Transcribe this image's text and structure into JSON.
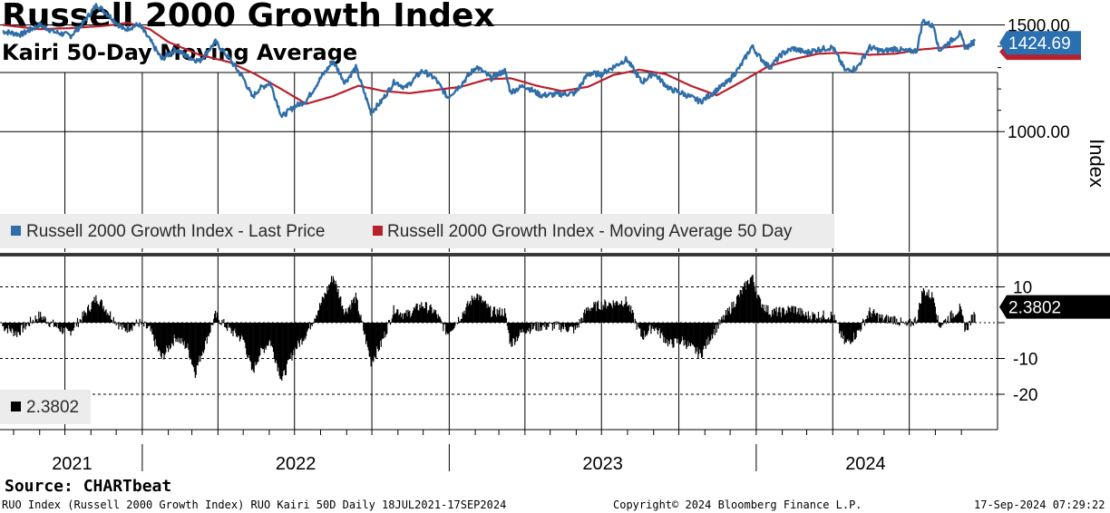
{
  "title": "Russell 2000 Growth Index",
  "subtitle": "Kairi 50-Day Moving Average",
  "source": "Source: CHARTbeat",
  "footer": {
    "left": "RUO Index (Russell 2000 Growth Index) RUO Kairi 50D  Daily 18JUL2021-17SEP2024",
    "center": "Copyright© 2024 Bloomberg Finance L.P.",
    "right": "17-Sep-2024 07:29:22"
  },
  "colors": {
    "price": "#2f6ea8",
    "ma": "#b8202c",
    "kairi": "#000000",
    "price_tag": "#2a6fb0",
    "kairi_tag": "#000000"
  },
  "chart_data": [
    {
      "type": "line",
      "ylabel": "Index",
      "ylim": [
        940,
        1560
      ],
      "yticks": [
        1000,
        1500
      ],
      "ytick_labels": [
        "1000.00",
        "1500.00"
      ],
      "x_range": [
        "2021-07-18",
        "2024-09-17"
      ],
      "year_labels": [
        "2021",
        "2022",
        "2023",
        "2024"
      ],
      "legend": {
        "position": "bottom-left"
      },
      "last_value_label": "1424.69",
      "series": [
        {
          "name": "Russell 2000 Growth Index - Last Price",
          "key": "price",
          "points": [
            [
              "2021-07-19",
              1470
            ],
            [
              "2021-08-10",
              1455
            ],
            [
              "2021-09-01",
              1500
            ],
            [
              "2021-09-20",
              1465
            ],
            [
              "2021-10-08",
              1450
            ],
            [
              "2021-10-20",
              1495
            ],
            [
              "2021-11-08",
              1595
            ],
            [
              "2021-11-25",
              1535
            ],
            [
              "2021-12-10",
              1478
            ],
            [
              "2021-12-28",
              1502
            ],
            [
              "2022-01-10",
              1430
            ],
            [
              "2022-01-24",
              1340
            ],
            [
              "2022-02-10",
              1385
            ],
            [
              "2022-02-24",
              1350
            ],
            [
              "2022-03-10",
              1330
            ],
            [
              "2022-03-29",
              1420
            ],
            [
              "2022-04-15",
              1340
            ],
            [
              "2022-05-02",
              1245
            ],
            [
              "2022-05-12",
              1160
            ],
            [
              "2022-05-20",
              1200
            ],
            [
              "2022-06-02",
              1230
            ],
            [
              "2022-06-16",
              1070
            ],
            [
              "2022-06-30",
              1115
            ],
            [
              "2022-07-15",
              1145
            ],
            [
              "2022-08-01",
              1250
            ],
            [
              "2022-08-16",
              1330
            ],
            [
              "2022-08-30",
              1230
            ],
            [
              "2022-09-12",
              1300
            ],
            [
              "2022-09-30",
              1090
            ],
            [
              "2022-10-12",
              1140
            ],
            [
              "2022-10-28",
              1235
            ],
            [
              "2022-11-10",
              1205
            ],
            [
              "2022-11-30",
              1285
            ],
            [
              "2022-12-15",
              1250
            ],
            [
              "2022-12-30",
              1160
            ],
            [
              "2023-01-15",
              1220
            ],
            [
              "2023-02-02",
              1305
            ],
            [
              "2023-02-20",
              1250
            ],
            [
              "2023-03-08",
              1285
            ],
            [
              "2023-03-15",
              1185
            ],
            [
              "2023-03-31",
              1215
            ],
            [
              "2023-04-20",
              1170
            ],
            [
              "2023-05-10",
              1175
            ],
            [
              "2023-05-31",
              1180
            ],
            [
              "2023-06-15",
              1270
            ],
            [
              "2023-07-01",
              1270
            ],
            [
              "2023-07-31",
              1340
            ],
            [
              "2023-08-18",
              1230
            ],
            [
              "2023-09-01",
              1275
            ],
            [
              "2023-09-20",
              1200
            ],
            [
              "2023-10-05",
              1180
            ],
            [
              "2023-10-27",
              1140
            ],
            [
              "2023-11-10",
              1180
            ],
            [
              "2023-11-29",
              1235
            ],
            [
              "2023-12-13",
              1305
            ],
            [
              "2023-12-27",
              1400
            ],
            [
              "2024-01-05",
              1350
            ],
            [
              "2024-01-17",
              1300
            ],
            [
              "2024-02-01",
              1365
            ],
            [
              "2024-02-14",
              1390
            ],
            [
              "2024-02-29",
              1370
            ],
            [
              "2024-03-15",
              1385
            ],
            [
              "2024-04-01",
              1395
            ],
            [
              "2024-04-16",
              1285
            ],
            [
              "2024-04-30",
              1300
            ],
            [
              "2024-05-15",
              1395
            ],
            [
              "2024-05-31",
              1375
            ],
            [
              "2024-06-14",
              1390
            ],
            [
              "2024-06-28",
              1375
            ],
            [
              "2024-07-10",
              1380
            ],
            [
              "2024-07-17",
              1520
            ],
            [
              "2024-07-31",
              1490
            ],
            [
              "2024-08-05",
              1380
            ],
            [
              "2024-08-15",
              1410
            ],
            [
              "2024-08-30",
              1460
            ],
            [
              "2024-09-06",
              1390
            ],
            [
              "2024-09-17",
              1424.69
            ]
          ]
        },
        {
          "name": "Russell 2000 Growth Index - Moving Average 50 Day",
          "key": "ma",
          "points": [
            [
              "2021-07-19",
              1500
            ],
            [
              "2021-09-01",
              1480
            ],
            [
              "2021-10-08",
              1485
            ],
            [
              "2021-11-15",
              1495
            ],
            [
              "2021-12-15",
              1510
            ],
            [
              "2022-01-10",
              1480
            ],
            [
              "2022-02-01",
              1420
            ],
            [
              "2022-03-10",
              1360
            ],
            [
              "2022-04-15",
              1325
            ],
            [
              "2022-05-15",
              1270
            ],
            [
              "2022-06-15",
              1200
            ],
            [
              "2022-07-15",
              1130
            ],
            [
              "2022-08-15",
              1165
            ],
            [
              "2022-09-15",
              1215
            ],
            [
              "2022-10-15",
              1190
            ],
            [
              "2022-11-15",
              1180
            ],
            [
              "2022-12-15",
              1195
            ],
            [
              "2023-01-15",
              1210
            ],
            [
              "2023-02-15",
              1245
            ],
            [
              "2023-03-15",
              1250
            ],
            [
              "2023-04-15",
              1215
            ],
            [
              "2023-05-15",
              1190
            ],
            [
              "2023-06-15",
              1210
            ],
            [
              "2023-07-15",
              1265
            ],
            [
              "2023-08-15",
              1290
            ],
            [
              "2023-09-15",
              1270
            ],
            [
              "2023-10-15",
              1215
            ],
            [
              "2023-11-15",
              1170
            ],
            [
              "2023-12-15",
              1235
            ],
            [
              "2024-01-15",
              1305
            ],
            [
              "2024-02-15",
              1340
            ],
            [
              "2024-03-15",
              1365
            ],
            [
              "2024-04-15",
              1370
            ],
            [
              "2024-05-15",
              1360
            ],
            [
              "2024-06-15",
              1365
            ],
            [
              "2024-07-15",
              1385
            ],
            [
              "2024-08-15",
              1395
            ],
            [
              "2024-09-17",
              1408
            ]
          ]
        }
      ]
    },
    {
      "type": "bar",
      "name": "RUO Kairi 50D",
      "ylim": [
        -29,
        14
      ],
      "yticks": [
        10,
        -10,
        -20
      ],
      "ytick_labels": [
        "10",
        "-10",
        "-20"
      ],
      "last_value_label": "2.3802",
      "legend_label": "2.3802",
      "series": [
        {
          "name": "Kairi 50D",
          "points": [
            [
              "2021-07-19",
              -1
            ],
            [
              "2021-08-05",
              -3
            ],
            [
              "2021-08-20",
              0
            ],
            [
              "2021-09-01",
              2
            ],
            [
              "2021-09-20",
              -1
            ],
            [
              "2021-10-05",
              -3
            ],
            [
              "2021-10-20",
              1
            ],
            [
              "2021-11-08",
              7
            ],
            [
              "2021-11-25",
              2
            ],
            [
              "2021-12-10",
              -2
            ],
            [
              "2021-12-28",
              0
            ],
            [
              "2022-01-10",
              -2
            ],
            [
              "2022-01-24",
              -10
            ],
            [
              "2022-02-10",
              -4
            ],
            [
              "2022-02-24",
              -7
            ],
            [
              "2022-03-05",
              -14
            ],
            [
              "2022-03-12",
              -9
            ],
            [
              "2022-03-29",
              2
            ],
            [
              "2022-04-15",
              -2
            ],
            [
              "2022-05-02",
              -5
            ],
            [
              "2022-05-12",
              -14
            ],
            [
              "2022-05-20",
              -9
            ],
            [
              "2022-06-02",
              -5
            ],
            [
              "2022-06-16",
              -16
            ],
            [
              "2022-06-30",
              -8
            ],
            [
              "2022-07-15",
              -3
            ],
            [
              "2022-08-01",
              5
            ],
            [
              "2022-08-16",
              13
            ],
            [
              "2022-08-30",
              3
            ],
            [
              "2022-09-12",
              7
            ],
            [
              "2022-09-30",
              -11
            ],
            [
              "2022-10-12",
              -6
            ],
            [
              "2022-10-28",
              4
            ],
            [
              "2022-11-10",
              2
            ],
            [
              "2022-11-30",
              5
            ],
            [
              "2022-12-15",
              3
            ],
            [
              "2022-12-30",
              -3
            ],
            [
              "2023-01-15",
              2
            ],
            [
              "2023-02-02",
              8
            ],
            [
              "2023-02-20",
              3
            ],
            [
              "2023-03-08",
              3
            ],
            [
              "2023-03-15",
              -6
            ],
            [
              "2023-03-31",
              -2
            ],
            [
              "2023-04-20",
              -1
            ],
            [
              "2023-05-10",
              -1
            ],
            [
              "2023-05-31",
              -2
            ],
            [
              "2023-06-15",
              4
            ],
            [
              "2023-07-01",
              5
            ],
            [
              "2023-07-31",
              6
            ],
            [
              "2023-08-18",
              -4
            ],
            [
              "2023-09-01",
              -1
            ],
            [
              "2023-09-20",
              -6
            ],
            [
              "2023-10-05",
              -5
            ],
            [
              "2023-10-27",
              -9
            ],
            [
              "2023-11-10",
              -3
            ],
            [
              "2023-11-29",
              3
            ],
            [
              "2023-12-13",
              8
            ],
            [
              "2023-12-27",
              13
            ],
            [
              "2024-01-05",
              6
            ],
            [
              "2024-01-17",
              3
            ],
            [
              "2024-02-01",
              3
            ],
            [
              "2024-02-14",
              4
            ],
            [
              "2024-02-29",
              2
            ],
            [
              "2024-03-15",
              2
            ],
            [
              "2024-04-01",
              2
            ],
            [
              "2024-04-16",
              -6
            ],
            [
              "2024-04-30",
              -3
            ],
            [
              "2024-05-15",
              3
            ],
            [
              "2024-05-31",
              1
            ],
            [
              "2024-06-14",
              1
            ],
            [
              "2024-06-28",
              -1
            ],
            [
              "2024-07-10",
              1
            ],
            [
              "2024-07-17",
              9
            ],
            [
              "2024-07-31",
              7
            ],
            [
              "2024-08-05",
              -1
            ],
            [
              "2024-08-15",
              1
            ],
            [
              "2024-08-30",
              4
            ],
            [
              "2024-09-06",
              -2
            ],
            [
              "2024-09-17",
              2.3802
            ]
          ]
        }
      ]
    }
  ]
}
